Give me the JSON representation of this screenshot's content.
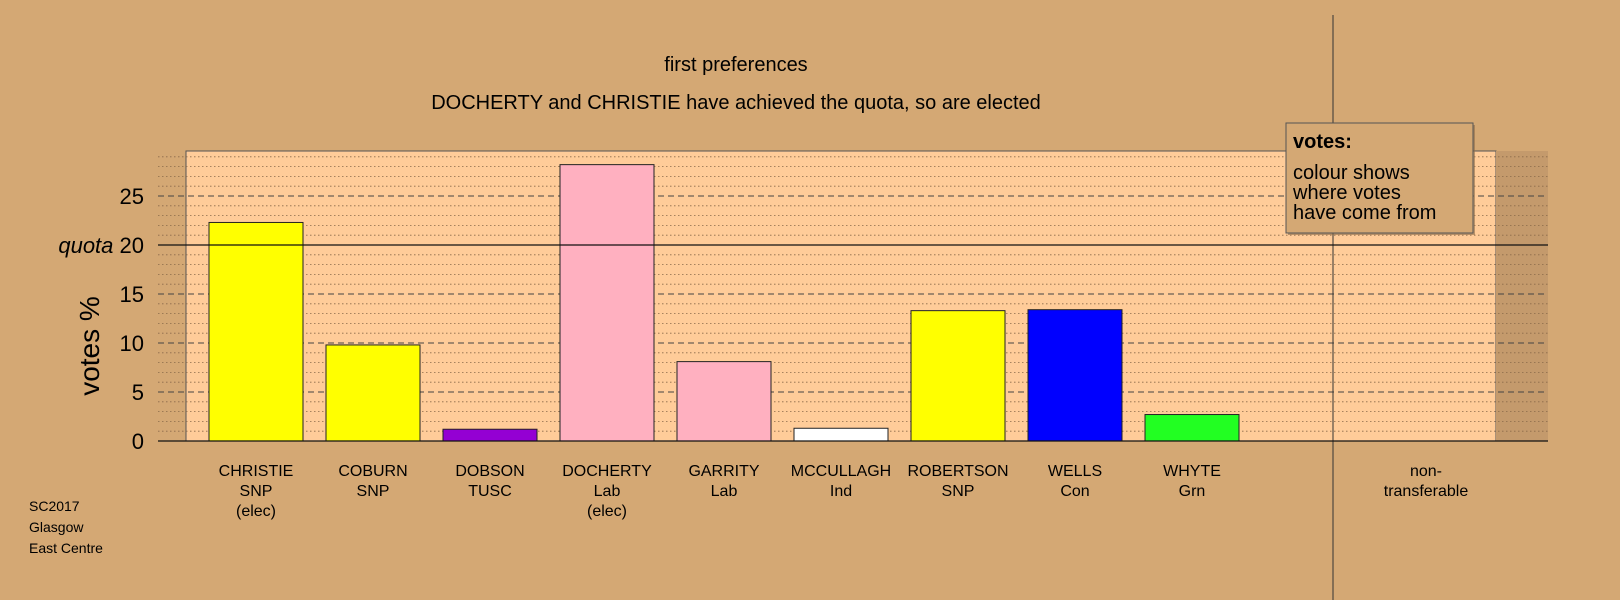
{
  "chart_data": {
    "type": "bar",
    "title": "first preferences",
    "subtitle": "DOCHERTY and CHRISTIE have achieved the quota, so are elected",
    "ylabel": "votes %",
    "quota_label": "quota",
    "quota": 20,
    "ylim": [
      0,
      29.5
    ],
    "yticks": [
      0,
      5,
      10,
      15,
      20,
      25
    ],
    "grid": true,
    "legend": {
      "title": "votes:",
      "lines": [
        "colour shows",
        "where votes",
        "have come from"
      ],
      "placement": "top-right"
    },
    "categories": [
      {
        "name": "CHRISTIE",
        "party": "SNP",
        "status": "(elec)",
        "value": 22.3,
        "color": "#ffff00"
      },
      {
        "name": "COBURN",
        "party": "SNP",
        "status": "",
        "value": 9.8,
        "color": "#ffff00"
      },
      {
        "name": "DOBSON",
        "party": "TUSC",
        "status": "",
        "value": 1.2,
        "color": "#9400d3"
      },
      {
        "name": "DOCHERTY",
        "party": "Lab",
        "status": "(elec)",
        "value": 28.2,
        "color": "#ffb0c0"
      },
      {
        "name": "GARRITY",
        "party": "Lab",
        "status": "",
        "value": 8.1,
        "color": "#ffb0c0"
      },
      {
        "name": "MCCULLAGH",
        "party": "Ind",
        "status": "",
        "value": 1.3,
        "color": "#ffffff"
      },
      {
        "name": "ROBERTSON",
        "party": "SNP",
        "status": "",
        "value": 13.3,
        "color": "#ffff00"
      },
      {
        "name": "WELLS",
        "party": "Con",
        "status": "",
        "value": 13.4,
        "color": "#0000ff"
      },
      {
        "name": "WHYTE",
        "party": "Grn",
        "status": "",
        "value": 2.7,
        "color": "#22ff22"
      }
    ],
    "non_transferable": {
      "line1": "non-",
      "line2": "transferable",
      "value": 0
    },
    "colors": {
      "background": "#d4a874",
      "plot_area": "#ffcc99",
      "right_panel": "#c49a6c"
    }
  },
  "footer": {
    "election": "SC2017",
    "council": "Glasgow",
    "ward": "East Centre"
  }
}
